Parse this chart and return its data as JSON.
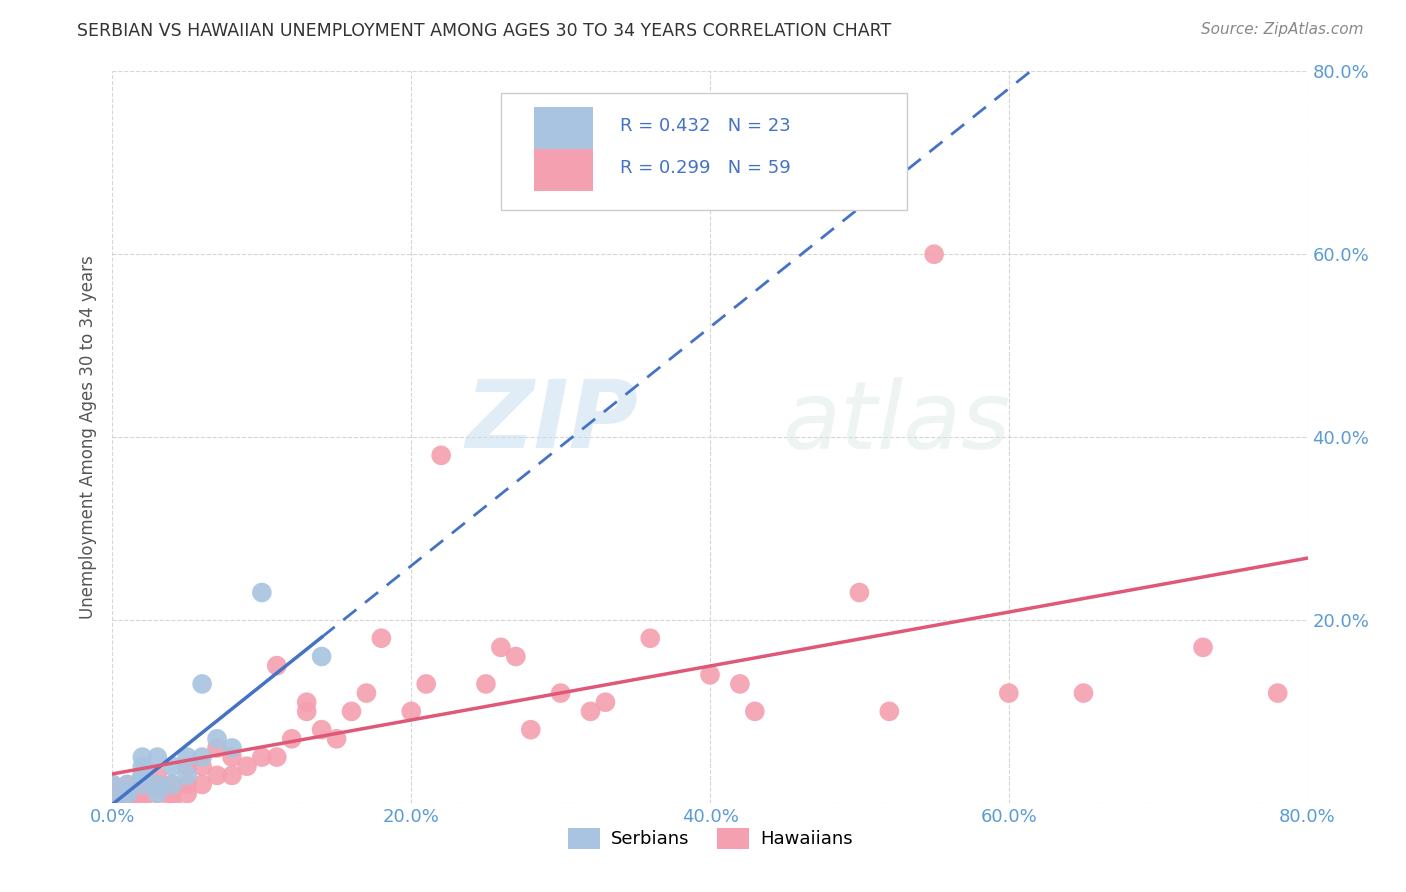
{
  "title": "SERBIAN VS HAWAIIAN UNEMPLOYMENT AMONG AGES 30 TO 34 YEARS CORRELATION CHART",
  "source": "Source: ZipAtlas.com",
  "ylabel": "Unemployment Among Ages 30 to 34 years",
  "xlim": [
    0,
    0.8
  ],
  "ylim": [
    0,
    0.8
  ],
  "xticks": [
    0.0,
    0.2,
    0.4,
    0.6,
    0.8
  ],
  "yticks": [
    0.0,
    0.2,
    0.4,
    0.6,
    0.8
  ],
  "xtick_labels": [
    "0.0%",
    "20.0%",
    "40.0%",
    "60.0%",
    "80.0%"
  ],
  "ytick_labels": [
    "",
    "20.0%",
    "40.0%",
    "60.0%",
    "80.0%"
  ],
  "serbian_R": 0.432,
  "serbian_N": 23,
  "hawaiian_R": 0.299,
  "hawaiian_N": 59,
  "legend_labels": [
    "Serbians",
    "Hawaiians"
  ],
  "serbian_color": "#a8c4e0",
  "hawaiian_color": "#f4a0b0",
  "trendline_serbian_color": "#4472c4",
  "trendline_hawaiian_color": "#e05878",
  "watermark_zip": "ZIP",
  "watermark_atlas": "atlas",
  "background_color": "#ffffff",
  "tick_color": "#5b9bd5",
  "serbian_x": [
    0.0,
    0.0,
    0.01,
    0.01,
    0.01,
    0.02,
    0.02,
    0.02,
    0.02,
    0.02,
    0.03,
    0.03,
    0.03,
    0.04,
    0.04,
    0.05,
    0.05,
    0.06,
    0.06,
    0.07,
    0.08,
    0.1,
    0.14
  ],
  "serbian_y": [
    0.0,
    0.02,
    0.01,
    0.01,
    0.02,
    0.02,
    0.03,
    0.03,
    0.04,
    0.05,
    0.01,
    0.02,
    0.05,
    0.02,
    0.04,
    0.03,
    0.05,
    0.05,
    0.13,
    0.07,
    0.06,
    0.23,
    0.16
  ],
  "hawaiian_x": [
    0.0,
    0.0,
    0.0,
    0.01,
    0.01,
    0.01,
    0.01,
    0.02,
    0.02,
    0.02,
    0.02,
    0.03,
    0.03,
    0.03,
    0.04,
    0.04,
    0.04,
    0.05,
    0.05,
    0.05,
    0.06,
    0.06,
    0.07,
    0.07,
    0.08,
    0.08,
    0.09,
    0.1,
    0.11,
    0.11,
    0.12,
    0.13,
    0.13,
    0.14,
    0.15,
    0.16,
    0.17,
    0.18,
    0.2,
    0.21,
    0.22,
    0.25,
    0.26,
    0.27,
    0.28,
    0.3,
    0.32,
    0.33,
    0.36,
    0.4,
    0.42,
    0.43,
    0.5,
    0.52,
    0.55,
    0.6,
    0.65,
    0.73,
    0.78
  ],
  "hawaiian_y": [
    0.0,
    0.01,
    0.02,
    0.0,
    0.01,
    0.01,
    0.02,
    0.0,
    0.01,
    0.02,
    0.03,
    0.01,
    0.02,
    0.03,
    0.0,
    0.01,
    0.02,
    0.01,
    0.02,
    0.04,
    0.02,
    0.04,
    0.03,
    0.06,
    0.03,
    0.05,
    0.04,
    0.05,
    0.05,
    0.15,
    0.07,
    0.1,
    0.11,
    0.08,
    0.07,
    0.1,
    0.12,
    0.18,
    0.1,
    0.13,
    0.38,
    0.13,
    0.17,
    0.16,
    0.08,
    0.12,
    0.1,
    0.11,
    0.18,
    0.14,
    0.13,
    0.1,
    0.23,
    0.1,
    0.6,
    0.12,
    0.12,
    0.17,
    0.12
  ]
}
